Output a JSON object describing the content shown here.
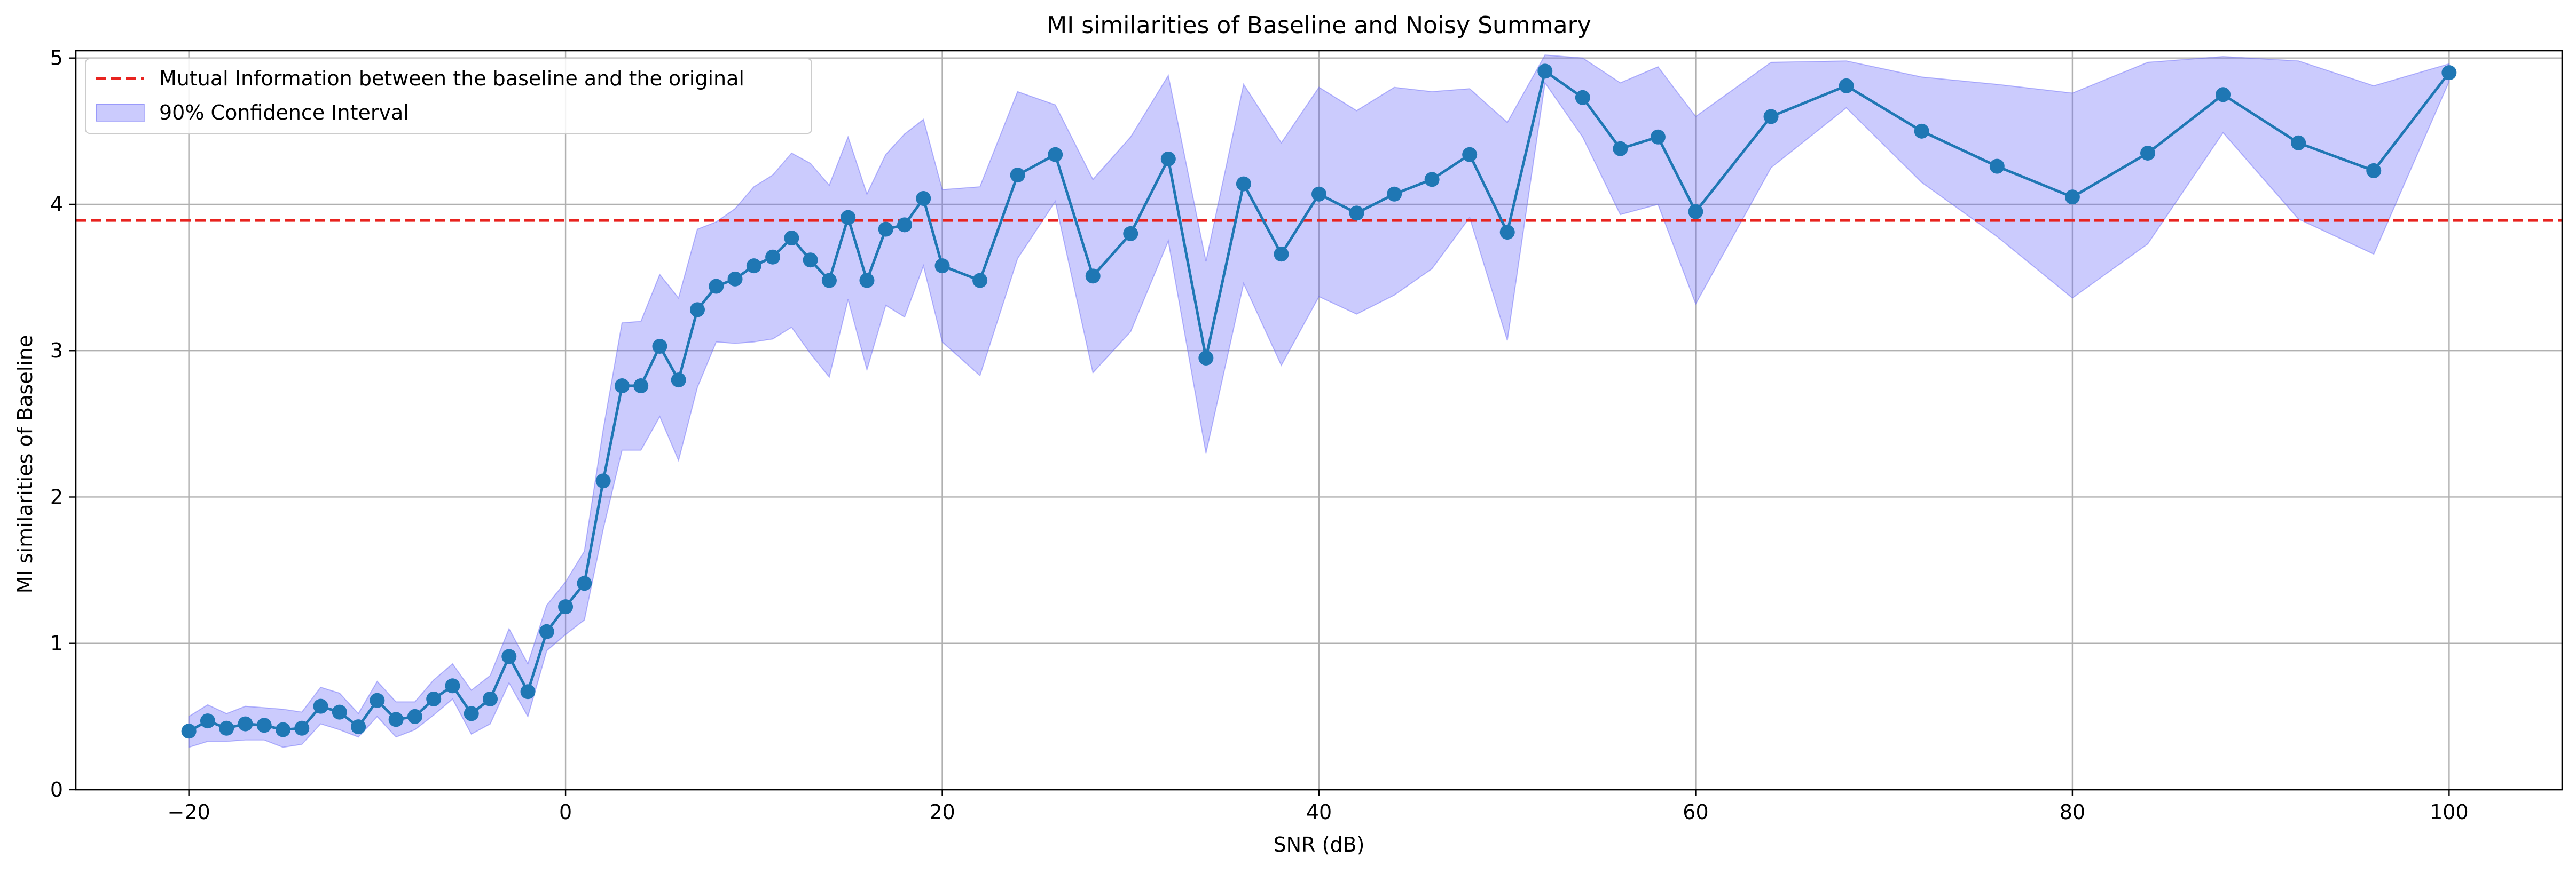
{
  "chart_data": {
    "type": "line",
    "title": "MI similarities of Baseline and Noisy Summary",
    "xlabel": "SNR (dB)",
    "ylabel": "MI similarities of Baseline",
    "xlim": [
      -26,
      106
    ],
    "ylim": [
      0,
      5.05
    ],
    "xticks": [
      -20,
      0,
      20,
      40,
      60,
      80,
      100
    ],
    "yticks": [
      0,
      1,
      2,
      3,
      4,
      5
    ],
    "grid": true,
    "legend_position": "top-left",
    "reference_line": {
      "name": "Mutual Information between the baseline and the original",
      "y": 3.89,
      "color": "#e8231f",
      "style": "dashed"
    },
    "series": [
      {
        "name": "",
        "color": "#1f77b4",
        "marker": "circle",
        "x": [
          -20,
          -19,
          -18,
          -17,
          -16,
          -15,
          -14,
          -13,
          -12,
          -11,
          -10,
          -9,
          -8,
          -7,
          -6,
          -5,
          -4,
          -3,
          -2,
          -1,
          0,
          1,
          2,
          3,
          4,
          5,
          6,
          7,
          8,
          9,
          10,
          11,
          12,
          13,
          14,
          15,
          16,
          17,
          18,
          19,
          20,
          22,
          24,
          26,
          28,
          30,
          32,
          34,
          36,
          38,
          40,
          42,
          44,
          46,
          48,
          50,
          52,
          54,
          56,
          58,
          60,
          64,
          68,
          72,
          76,
          80,
          84,
          88,
          92,
          96,
          100
        ],
        "y": [
          0.4,
          0.47,
          0.42,
          0.45,
          0.44,
          0.41,
          0.42,
          0.57,
          0.53,
          0.43,
          0.61,
          0.48,
          0.5,
          0.62,
          0.71,
          0.52,
          0.62,
          0.91,
          0.67,
          1.08,
          1.25,
          1.41,
          2.11,
          2.76,
          2.76,
          3.03,
          2.8,
          3.28,
          3.44,
          3.49,
          3.58,
          3.64,
          3.77,
          3.62,
          3.48,
          3.91,
          3.48,
          3.83,
          3.86,
          4.04,
          3.58,
          3.48,
          4.2,
          4.34,
          3.51,
          3.8,
          4.31,
          2.95,
          4.14,
          3.66,
          4.07,
          3.94,
          4.07,
          4.17,
          4.34,
          3.81,
          4.91,
          4.73,
          4.38,
          4.46,
          3.95,
          4.6,
          4.81,
          4.5,
          4.26,
          4.05,
          4.35,
          4.75,
          4.42,
          4.23,
          4.9
        ]
      }
    ],
    "confidence_interval": {
      "name": "90% Confidence Interval",
      "color": "#6a6af8",
      "lower": [
        0.29,
        0.33,
        0.33,
        0.34,
        0.34,
        0.29,
        0.31,
        0.45,
        0.41,
        0.36,
        0.5,
        0.36,
        0.41,
        0.51,
        0.62,
        0.38,
        0.45,
        0.73,
        0.5,
        0.95,
        1.06,
        1.16,
        1.78,
        2.32,
        2.32,
        2.55,
        2.25,
        2.75,
        3.06,
        3.05,
        3.06,
        3.08,
        3.16,
        2.98,
        2.82,
        3.35,
        2.87,
        3.31,
        3.23,
        3.58,
        3.06,
        2.83,
        3.63,
        4.02,
        2.85,
        3.13,
        3.75,
        2.3,
        3.46,
        2.9,
        3.37,
        3.25,
        3.38,
        3.56,
        3.91,
        3.07,
        4.83,
        4.46,
        3.93,
        4.0,
        3.32,
        4.25,
        4.66,
        4.15,
        3.78,
        3.36,
        3.73,
        4.49,
        3.9,
        3.66,
        4.84
      ],
      "upper": [
        0.5,
        0.58,
        0.52,
        0.57,
        0.56,
        0.55,
        0.53,
        0.7,
        0.66,
        0.52,
        0.74,
        0.6,
        0.6,
        0.75,
        0.86,
        0.68,
        0.78,
        1.1,
        0.86,
        1.26,
        1.42,
        1.63,
        2.46,
        3.19,
        3.2,
        3.52,
        3.36,
        3.83,
        3.88,
        3.97,
        4.12,
        4.2,
        4.35,
        4.28,
        4.13,
        4.46,
        4.07,
        4.34,
        4.48,
        4.58,
        4.1,
        4.12,
        4.77,
        4.68,
        4.17,
        4.46,
        4.88,
        3.61,
        4.82,
        4.42,
        4.8,
        4.64,
        4.8,
        4.77,
        4.79,
        4.56,
        5.02,
        5.0,
        4.83,
        4.94,
        4.6,
        4.97,
        4.98,
        4.87,
        4.82,
        4.76,
        4.97,
        5.01,
        4.98,
        4.81,
        4.96
      ]
    }
  }
}
